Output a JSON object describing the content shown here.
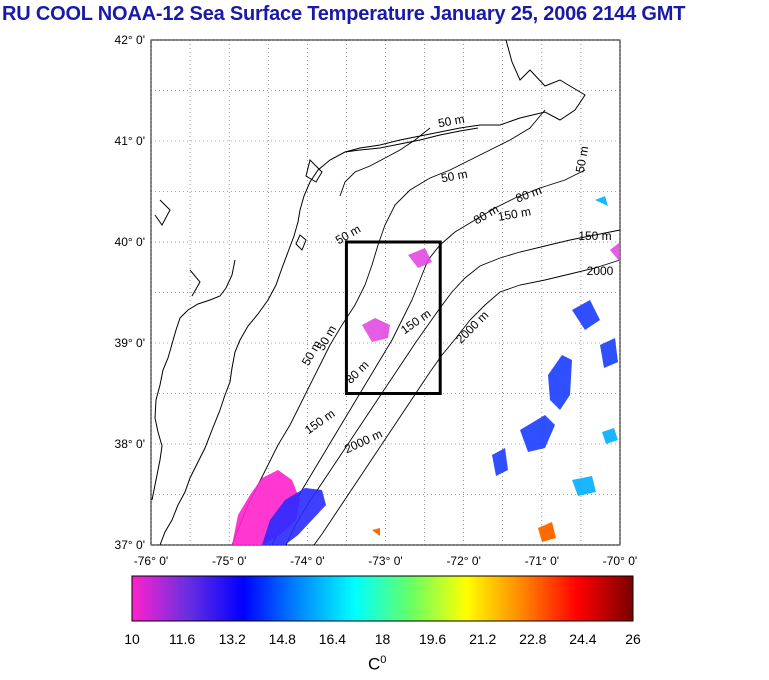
{
  "title": "RU COOL  NOAA-12 Sea Surface Temperature January 25, 2006 2144 GMT",
  "map": {
    "lat_labels": [
      "42° 0'",
      "41° 0'",
      "40° 0'",
      "39° 0'",
      "38° 0'",
      "37° 0'"
    ],
    "lon_labels": [
      "-76° 0'",
      "-75° 0'",
      "-74° 0'",
      "-73° 0'",
      "-72° 0'",
      "-71° 0'",
      "-70° 0'"
    ],
    "lat_range": [
      37,
      42
    ],
    "lon_range": [
      -76,
      -70
    ],
    "contour_labels": [
      "50 m",
      "50 m",
      "50 m",
      "50 m",
      "50 m",
      "50 m",
      "80 m",
      "80 m",
      "80 m",
      "150 m",
      "150 m",
      "150 m",
      "150 m",
      "2000 m",
      "2000 m",
      "2000"
    ],
    "study_box": {
      "lon_min": -73.5,
      "lon_max": -72.3,
      "lat_min": 38.5,
      "lat_max": 40.0
    }
  },
  "colorbar": {
    "ticks": [
      "10",
      "11.6",
      "13.2",
      "14.8",
      "16.4",
      "18",
      "19.6",
      "21.2",
      "22.8",
      "24.4",
      "26"
    ],
    "range": [
      10,
      26
    ],
    "colors": [
      "#ff22cc",
      "#6a2ee0",
      "#0000ff",
      "#0088ff",
      "#00ffff",
      "#66ff66",
      "#ffff00",
      "#ff8800",
      "#ff0000",
      "#7a0000"
    ],
    "unit": "C",
    "unit_sup": "0"
  }
}
